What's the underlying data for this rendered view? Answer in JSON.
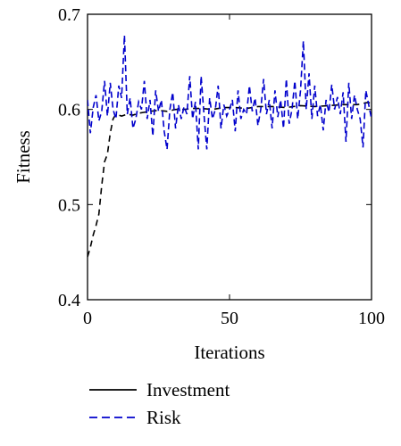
{
  "chart_data": {
    "type": "line",
    "title": "",
    "xlabel": "Iterations",
    "ylabel": "Fitness",
    "xlim": [
      0,
      100
    ],
    "ylim": [
      0.4,
      0.7
    ],
    "x_ticks": [
      0,
      50,
      100
    ],
    "y_ticks": [
      0.4,
      0.5,
      0.6,
      0.7
    ],
    "x_tick_labels": [
      "0",
      "50",
      "100"
    ],
    "y_tick_labels": [
      "0.4",
      "0.5",
      "0.6",
      "0.7"
    ],
    "grid": false,
    "legend_placement": "bottom-below",
    "series": [
      {
        "name": "Investment",
        "color": "#000000",
        "x": [
          0,
          1,
          2,
          3,
          4,
          5,
          6,
          7,
          8,
          9,
          10,
          12,
          14,
          16,
          18,
          20,
          22,
          25,
          28,
          31,
          34,
          37,
          40,
          44,
          48,
          52,
          56,
          60,
          65,
          70,
          75,
          80,
          85,
          90,
          95,
          98,
          100
        ],
        "y": [
          0.445,
          0.455,
          0.468,
          0.478,
          0.49,
          0.52,
          0.545,
          0.553,
          0.575,
          0.59,
          0.595,
          0.593,
          0.595,
          0.594,
          0.596,
          0.597,
          0.598,
          0.599,
          0.598,
          0.6,
          0.6,
          0.601,
          0.601,
          0.6,
          0.602,
          0.602,
          0.601,
          0.603,
          0.603,
          0.602,
          0.604,
          0.603,
          0.604,
          0.605,
          0.605,
          0.607,
          0.607
        ]
      },
      {
        "name": "Risk",
        "color": "#0000cc",
        "x": [
          0,
          1,
          2,
          3,
          4,
          5,
          6,
          7,
          8,
          9,
          10,
          11,
          12,
          13,
          14,
          15,
          16,
          17,
          18,
          19,
          20,
          21,
          22,
          23,
          24,
          25,
          26,
          27,
          28,
          29,
          30,
          31,
          32,
          33,
          34,
          35,
          36,
          37,
          38,
          39,
          40,
          41,
          42,
          43,
          44,
          45,
          46,
          47,
          48,
          49,
          50,
          51,
          52,
          53,
          54,
          55,
          56,
          57,
          58,
          59,
          60,
          61,
          62,
          63,
          64,
          65,
          66,
          67,
          68,
          69,
          70,
          71,
          72,
          73,
          74,
          75,
          76,
          77,
          78,
          79,
          80,
          81,
          82,
          83,
          84,
          85,
          86,
          87,
          88,
          89,
          90,
          91,
          92,
          93,
          94,
          95,
          96,
          97,
          98,
          99,
          100
        ],
        "y": [
          0.61,
          0.575,
          0.602,
          0.615,
          0.588,
          0.598,
          0.63,
          0.593,
          0.628,
          0.6,
          0.59,
          0.625,
          0.612,
          0.678,
          0.595,
          0.612,
          0.58,
          0.59,
          0.608,
          0.6,
          0.63,
          0.59,
          0.61,
          0.572,
          0.62,
          0.598,
          0.61,
          0.577,
          0.558,
          0.6,
          0.618,
          0.58,
          0.605,
          0.59,
          0.603,
          0.595,
          0.635,
          0.59,
          0.608,
          0.558,
          0.635,
          0.595,
          0.558,
          0.612,
          0.59,
          0.6,
          0.625,
          0.58,
          0.605,
          0.593,
          0.6,
          0.61,
          0.577,
          0.62,
          0.59,
          0.6,
          0.595,
          0.625,
          0.598,
          0.612,
          0.583,
          0.6,
          0.632,
          0.595,
          0.61,
          0.58,
          0.62,
          0.592,
          0.61,
          0.58,
          0.632,
          0.585,
          0.6,
          0.63,
          0.59,
          0.62,
          0.672,
          0.6,
          0.638,
          0.59,
          0.625,
          0.593,
          0.605,
          0.578,
          0.61,
          0.597,
          0.626,
          0.6,
          0.613,
          0.595,
          0.618,
          0.566,
          0.628,
          0.59,
          0.615,
          0.6,
          0.59,
          0.56,
          0.62,
          0.605,
          0.59
        ]
      }
    ],
    "legend": [
      {
        "name": "Investment",
        "color": "#000000"
      },
      {
        "name": "Risk",
        "color": "#0000cc"
      }
    ]
  }
}
